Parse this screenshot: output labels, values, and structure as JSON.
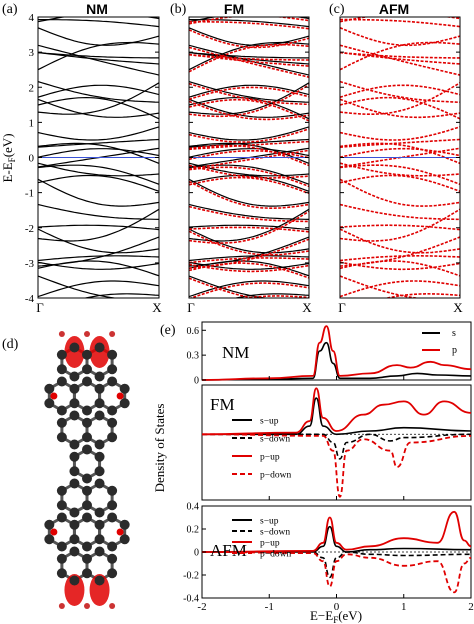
{
  "figure": {
    "panel_letters": [
      "(a)",
      "(b)",
      "(c)",
      "(d)",
      "(e)"
    ],
    "band_titles": [
      "NM",
      "FM",
      "AFM"
    ],
    "band_ylabel": "E-E",
    "band_ylabel_sub": "F",
    "band_ylabel_unit": "(eV)",
    "kpath_labels": [
      "Γ",
      "X"
    ],
    "fermi_line_color": "#3a52d6",
    "up_band_color": "#000000",
    "down_band_color": "#e00000",
    "dos_ylabel": "Density of States",
    "dos_xlabel": "E−E",
    "dos_xlabel_sub": "F",
    "dos_xlabel_unit": "(eV)",
    "dos_subplots": [
      "NM",
      "FM",
      "AFM"
    ],
    "dos_legend_nm": [
      "s",
      "p"
    ],
    "dos_legend_spin": [
      "s−up",
      "s−down",
      "p−up",
      "p−down"
    ],
    "molecule_atom_color": "#2b2b2b",
    "spin_density_color": "#e00000"
  },
  "chart_data": [
    {
      "type": "line",
      "title": "NM",
      "xlabel": "",
      "ylabel": "E-EF(eV)",
      "ylim": [
        -4,
        4
      ],
      "yticks": [
        -4,
        -3,
        -2,
        -1,
        0,
        1,
        2,
        3,
        4
      ],
      "xticks": [
        "Γ",
        "X"
      ],
      "series": [
        {
          "name": "",
          "color": "#000000"
        }
      ]
    },
    {
      "type": "line",
      "title": "FM",
      "ylim": [
        -4,
        4
      ],
      "yticks": [
        -4,
        -3,
        -2,
        -1,
        0,
        1,
        2,
        3,
        4
      ],
      "xticks": [
        "Γ",
        "X"
      ],
      "series": [
        {
          "name": "",
          "color": "#000000"
        },
        {
          "name": "",
          "color": "#e00000"
        }
      ]
    },
    {
      "type": "line",
      "title": "AFM",
      "ylim": [
        -4,
        4
      ],
      "yticks": [
        -4,
        -3,
        -2,
        -1,
        0,
        1,
        2,
        3,
        4
      ],
      "xticks": [
        "Γ",
        "X"
      ],
      "series": [
        {
          "name": "",
          "color": "#e00000"
        }
      ]
    },
    {
      "type": "line",
      "title": "NM",
      "xlim": [
        -2,
        2
      ],
      "ylim": [
        0,
        0.7
      ],
      "yticks": [
        0,
        0.3,
        0.6
      ],
      "series": [
        {
          "name": "s",
          "color": "#000000",
          "x": [
            -2,
            -1.0,
            -0.35,
            -0.25,
            -0.15,
            -0.05,
            0.05,
            0.5,
            0.9,
            1.2,
            1.5,
            2.0
          ],
          "y": [
            0,
            0.01,
            0.02,
            0.35,
            0.45,
            0.2,
            0.02,
            0.02,
            0.05,
            0.08,
            0.06,
            0.05
          ]
        },
        {
          "name": "p",
          "color": "#e00000",
          "x": [
            -2,
            -1.0,
            -0.35,
            -0.25,
            -0.15,
            -0.05,
            0.05,
            0.5,
            0.9,
            1.1,
            1.4,
            1.6,
            2.0
          ],
          "y": [
            0,
            0.02,
            0.05,
            0.45,
            0.65,
            0.35,
            0.05,
            0.08,
            0.18,
            0.15,
            0.22,
            0.18,
            0.13
          ]
        }
      ]
    },
    {
      "type": "line",
      "title": "FM",
      "xlim": [
        -2,
        2
      ],
      "ylim": [
        -0.4,
        0.3
      ],
      "series": [
        {
          "name": "s−up",
          "color": "#000000",
          "x": [
            -2,
            -0.6,
            -0.4,
            -0.3,
            -0.2,
            0.0,
            0.5,
            1.0,
            2.0
          ],
          "y": [
            0,
            0.0,
            0.05,
            0.22,
            0.05,
            0.0,
            0.02,
            0.04,
            0.02
          ]
        },
        {
          "name": "s−down",
          "color": "#000000",
          "x": [
            -2,
            -0.2,
            -0.05,
            0.05,
            0.15,
            0.5,
            0.8,
            1.0,
            2.0
          ],
          "y": [
            0,
            0.0,
            -0.05,
            -0.15,
            -0.05,
            0.0,
            -0.04,
            -0.02,
            0
          ]
        },
        {
          "name": "p−up",
          "color": "#e00000",
          "x": [
            -2,
            -0.6,
            -0.4,
            -0.3,
            -0.2,
            0.0,
            0.4,
            0.7,
            1.0,
            1.3,
            1.6,
            2.0
          ],
          "y": [
            0,
            0.01,
            0.08,
            0.28,
            0.1,
            0.02,
            0.12,
            0.18,
            0.2,
            0.12,
            0.2,
            0.13
          ]
        },
        {
          "name": "p−down",
          "color": "#e00000",
          "x": [
            -2,
            -0.2,
            -0.05,
            0.05,
            0.15,
            0.4,
            0.8,
            0.9,
            1.1,
            2.0
          ],
          "y": [
            0,
            -0.01,
            -0.1,
            -0.38,
            -0.1,
            -0.03,
            -0.1,
            -0.2,
            -0.05,
            -0.01
          ]
        }
      ]
    },
    {
      "type": "line",
      "title": "AFM",
      "xlim": [
        -2,
        2
      ],
      "ylim": [
        -0.4,
        0.4
      ],
      "yticks": [
        -0.4,
        -0.2,
        0,
        0.2,
        0.4
      ],
      "xticks": [
        -2,
        -1,
        0,
        1,
        2
      ],
      "xlabel": "E−EF(eV)",
      "series": [
        {
          "name": "s−up",
          "color": "#000000",
          "x": [
            -2,
            -0.35,
            -0.2,
            -0.1,
            0.0,
            0.15,
            0.5,
            1.0,
            2.0
          ],
          "y": [
            0,
            0.0,
            0.05,
            0.22,
            0.05,
            0.0,
            0.02,
            0.03,
            0.02
          ]
        },
        {
          "name": "s−down",
          "color": "#000000",
          "x": [
            -2,
            -0.35,
            -0.2,
            -0.1,
            0.0,
            0.15,
            0.5,
            1.0,
            2.0
          ],
          "y": [
            0,
            0.0,
            -0.05,
            -0.22,
            -0.05,
            0.0,
            -0.02,
            -0.03,
            -0.02
          ]
        },
        {
          "name": "p−up",
          "color": "#e00000",
          "x": [
            -2,
            -0.35,
            -0.2,
            -0.1,
            0.0,
            0.15,
            0.5,
            1.0,
            1.5,
            1.75,
            1.9,
            2.0
          ],
          "y": [
            0,
            0.01,
            0.08,
            0.3,
            0.08,
            0.02,
            0.05,
            0.12,
            0.08,
            0.35,
            0.1,
            0.05
          ]
        },
        {
          "name": "p−down",
          "color": "#e00000",
          "x": [
            -2,
            -0.35,
            -0.2,
            -0.1,
            0.0,
            0.15,
            0.5,
            1.0,
            1.5,
            1.75,
            1.9,
            2.0
          ],
          "y": [
            0,
            -0.01,
            -0.08,
            -0.3,
            -0.08,
            -0.02,
            -0.05,
            -0.12,
            -0.08,
            -0.35,
            -0.1,
            -0.05
          ]
        }
      ]
    }
  ]
}
